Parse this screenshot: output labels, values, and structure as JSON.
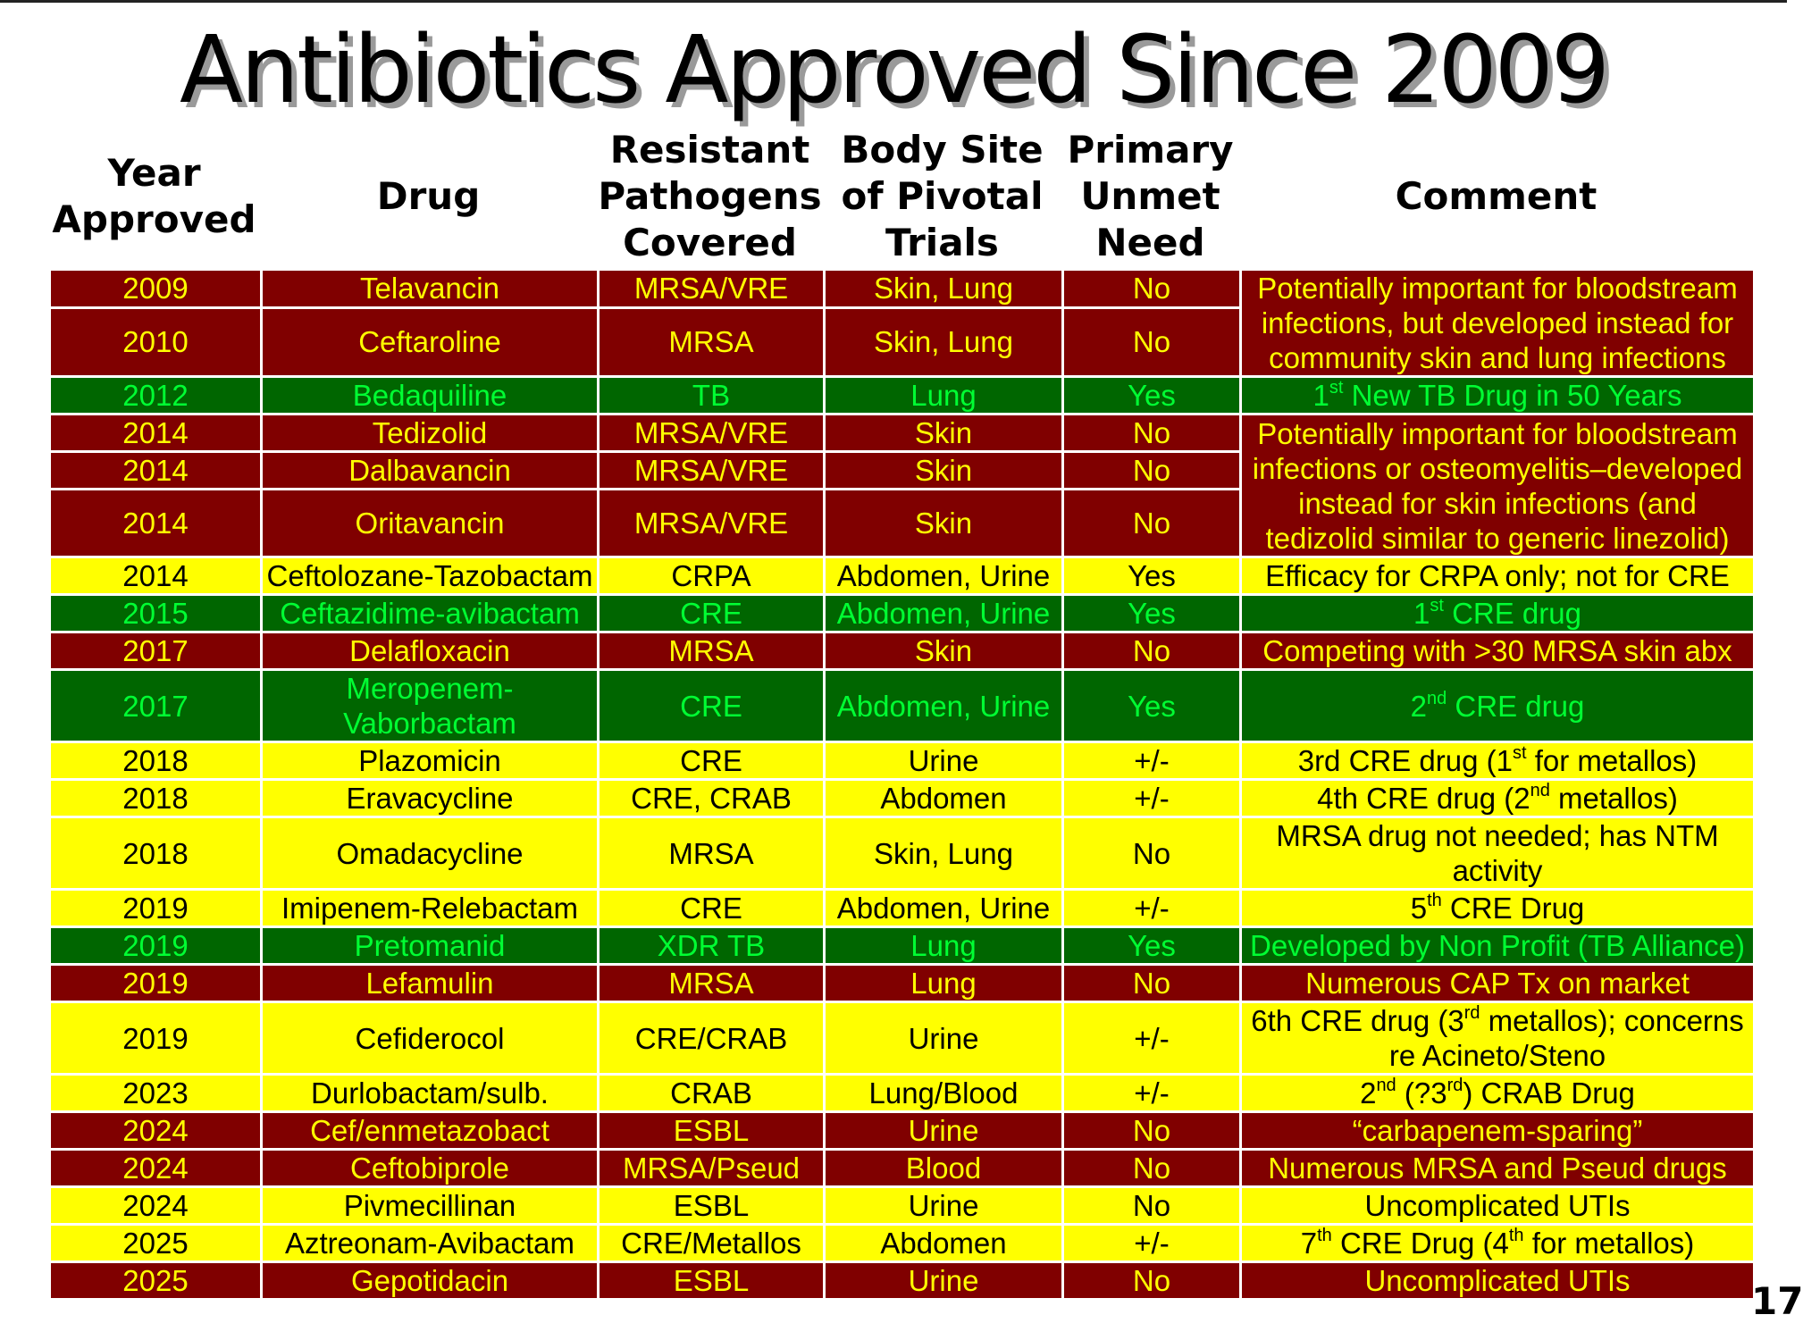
{
  "title": "Antibiotics Approved Since 2009",
  "headers": [
    [
      "Year",
      "Approved"
    ],
    [
      "Drug"
    ],
    [
      "Resistant",
      "Pathogens",
      "Covered"
    ],
    [
      "Body Site",
      "of Pivotal",
      "Trials"
    ],
    [
      "Primary",
      "Unmet",
      "Need"
    ],
    [
      "Comment"
    ]
  ],
  "colors": {
    "red": "#800000",
    "green": "#006600",
    "yellow": "#ffff00",
    "red_text": "#ffff00",
    "green_text": "#00ff33",
    "yellow_text": "#000000"
  },
  "rows": [
    {
      "style": "red",
      "tall": false,
      "year": "2009",
      "drug": "Telavancin",
      "pathogens": "MRSA/VRE",
      "site": "Skin, Lung",
      "need": "No",
      "comment_span": 2,
      "comment": [
        {
          "t": "Potentially important for bloodstream infections, but developed instead for community skin and lung infections"
        }
      ]
    },
    {
      "style": "red",
      "tall": true,
      "year": "2010",
      "drug": "Ceftaroline",
      "pathogens": "MRSA",
      "site": "Skin, Lung",
      "need": "No"
    },
    {
      "style": "green",
      "tall": false,
      "year": "2012",
      "drug": "Bedaquiline",
      "pathogens": "TB",
      "site": "Lung",
      "need": "Yes",
      "comment": [
        {
          "t": "1"
        },
        {
          "t": "st",
          "sup": true
        },
        {
          "t": " New TB Drug in 50 Years"
        }
      ]
    },
    {
      "style": "red",
      "tall": false,
      "year": "2014",
      "drug": "Tedizolid",
      "pathogens": "MRSA/VRE",
      "site": "Skin",
      "need": "No",
      "comment_span": 3,
      "comment": [
        {
          "t": "Potentially important for bloodstream infections or osteomyelitis–developed instead for skin infections (and tedizolid similar to generic linezolid)"
        }
      ]
    },
    {
      "style": "red",
      "tall": false,
      "year": "2014",
      "drug": "Dalbavancin",
      "pathogens": "MRSA/VRE",
      "site": "Skin",
      "need": "No"
    },
    {
      "style": "red",
      "tall": true,
      "year": "2014",
      "drug": "Oritavancin",
      "pathogens": "MRSA/VRE",
      "site": "Skin",
      "need": "No"
    },
    {
      "style": "yellow",
      "tall": false,
      "year": "2014",
      "drug": "Ceftolozane-Tazobactam",
      "pathogens": "CRPA",
      "site": "Abdomen, Urine",
      "need": "Yes",
      "comment": [
        {
          "t": "Efficacy for CRPA only; not for CRE"
        }
      ]
    },
    {
      "style": "green",
      "tall": false,
      "year": "2015",
      "drug": "Ceftazidime-avibactam",
      "pathogens": "CRE",
      "site": "Abdomen, Urine",
      "need": "Yes",
      "comment": [
        {
          "t": "1"
        },
        {
          "t": "st",
          "sup": true
        },
        {
          "t": " CRE drug"
        }
      ]
    },
    {
      "style": "red",
      "tall": false,
      "year": "2017",
      "drug": "Delafloxacin",
      "pathogens": "MRSA",
      "site": "Skin",
      "need": "No",
      "comment": [
        {
          "t": "Competing with >30 MRSA skin abx"
        }
      ]
    },
    {
      "style": "green",
      "tall": true,
      "year": "2017",
      "drug": "Meropenem-Vaborbactam",
      "pathogens": "CRE",
      "site": "Abdomen, Urine",
      "need": "Yes",
      "comment": [
        {
          "t": "2"
        },
        {
          "t": "nd",
          "sup": true
        },
        {
          "t": " CRE drug"
        }
      ]
    },
    {
      "style": "yellow",
      "tall": false,
      "year": "2018",
      "drug": "Plazomicin",
      "pathogens": "CRE",
      "site": "Urine",
      "need": "+/-",
      "comment": [
        {
          "t": "3rd CRE drug (1"
        },
        {
          "t": "st",
          "sup": true
        },
        {
          "t": " for metallos)"
        }
      ]
    },
    {
      "style": "yellow",
      "tall": false,
      "year": "2018",
      "drug": "Eravacycline",
      "pathogens": "CRE, CRAB",
      "site": "Abdomen",
      "need": "+/-",
      "comment": [
        {
          "t": "4th CRE drug (2"
        },
        {
          "t": "nd",
          "sup": true
        },
        {
          "t": " metallos)"
        }
      ]
    },
    {
      "style": "yellow",
      "tall": true,
      "year": "2018",
      "drug": "Omadacycline",
      "pathogens": "MRSA",
      "site": "Skin, Lung",
      "need": "No",
      "comment": [
        {
          "t": "MRSA drug not needed; has NTM activity"
        }
      ]
    },
    {
      "style": "yellow",
      "tall": false,
      "year": "2019",
      "drug": "Imipenem-Relebactam",
      "pathogens": "CRE",
      "site": "Abdomen, Urine",
      "need": "+/-",
      "comment": [
        {
          "t": "5"
        },
        {
          "t": "th",
          "sup": true
        },
        {
          "t": " CRE Drug"
        }
      ]
    },
    {
      "style": "green",
      "tall": false,
      "year": "2019",
      "drug": "Pretomanid",
      "pathogens": "XDR TB",
      "site": "Lung",
      "need": "Yes",
      "comment": [
        {
          "t": "Developed by Non Profit (TB Alliance)"
        }
      ]
    },
    {
      "style": "red",
      "tall": false,
      "year": "2019",
      "drug": "Lefamulin",
      "pathogens": "MRSA",
      "site": "Lung",
      "need": "No",
      "comment": [
        {
          "t": "Numerous CAP Tx on market"
        }
      ]
    },
    {
      "style": "yellow",
      "tall": true,
      "year": "2019",
      "drug": "Cefiderocol",
      "pathogens": "CRE/CRAB",
      "site": "Urine",
      "need": "+/-",
      "comment": [
        {
          "t": "6th CRE drug (3"
        },
        {
          "t": "rd",
          "sup": true
        },
        {
          "t": " metallos); concerns re Acineto/Steno"
        }
      ]
    },
    {
      "style": "yellow",
      "tall": false,
      "year": "2023",
      "drug": "Durlobactam/sulb.",
      "pathogens": "CRAB",
      "site": "Lung/Blood",
      "need": "+/-",
      "comment": [
        {
          "t": "2"
        },
        {
          "t": "nd",
          "sup": true
        },
        {
          "t": " (?3"
        },
        {
          "t": "rd",
          "sup": true
        },
        {
          "t": ") CRAB Drug"
        }
      ]
    },
    {
      "style": "red",
      "tall": false,
      "year": "2024",
      "drug": "Cef/enmetazobact",
      "pathogens": "ESBL",
      "site": "Urine",
      "need": "No",
      "comment": [
        {
          "t": "“carbapenem-sparing”"
        }
      ]
    },
    {
      "style": "red",
      "tall": false,
      "year": "2024",
      "drug": "Ceftobiprole",
      "pathogens": "MRSA/Pseud",
      "site": "Blood",
      "need": "No",
      "comment": [
        {
          "t": "Numerous MRSA and Pseud drugs"
        }
      ]
    },
    {
      "style": "yellow",
      "tall": false,
      "year": "2024",
      "drug": "Pivmecillinan",
      "pathogens": "ESBL",
      "site": "Urine",
      "need": "No",
      "comment": [
        {
          "t": "Uncomplicated UTIs"
        }
      ]
    },
    {
      "style": "yellow",
      "tall": false,
      "year": "2025",
      "drug": "Aztreonam-Avibactam",
      "pathogens": "CRE/Metallos",
      "site": "Abdomen",
      "need": "+/-",
      "comment": [
        {
          "t": "7"
        },
        {
          "t": "th",
          "sup": true
        },
        {
          "t": " CRE Drug (4"
        },
        {
          "t": "th",
          "sup": true
        },
        {
          "t": " for metallos)"
        }
      ]
    },
    {
      "style": "red",
      "tall": false,
      "year": "2025",
      "drug": "Gepotidacin",
      "pathogens": "ESBL",
      "site": "Urine",
      "need": "No",
      "comment": [
        {
          "t": "Uncomplicated UTIs"
        }
      ]
    }
  ],
  "page_number": "17"
}
